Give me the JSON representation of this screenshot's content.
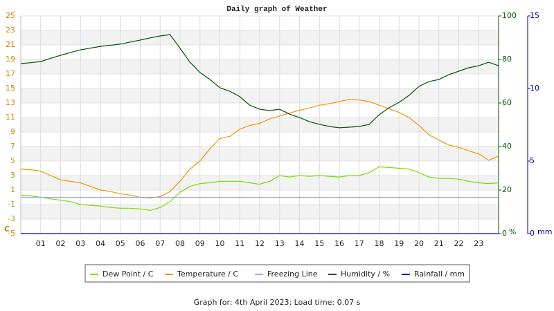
{
  "chart_data": {
    "type": "line",
    "title": "Daily graph of Weather",
    "footer": "Graph for: 4th April 2023; Load time: 0.07 s",
    "x": [
      0,
      0.5,
      1,
      1.5,
      2,
      2.5,
      3,
      3.5,
      4,
      4.5,
      5,
      5.5,
      6,
      6.5,
      7,
      7.5,
      8,
      8.5,
      9,
      9.5,
      10,
      10.5,
      11,
      11.5,
      12,
      12.5,
      13,
      13.5,
      14,
      14.5,
      15,
      15.5,
      16,
      16.5,
      17,
      17.5,
      18,
      18.5,
      19,
      19.5,
      20,
      20.5,
      21,
      21.5,
      22,
      22.5,
      23,
      23.5,
      24
    ],
    "xlim": [
      0,
      24
    ],
    "xticks": [
      {
        "value": 1,
        "label": "01"
      },
      {
        "value": 2,
        "label": "02"
      },
      {
        "value": 3,
        "label": "03"
      },
      {
        "value": 4,
        "label": "04"
      },
      {
        "value": 5,
        "label": "05"
      },
      {
        "value": 6,
        "label": "06"
      },
      {
        "value": 7,
        "label": "07"
      },
      {
        "value": 8,
        "label": "08"
      },
      {
        "value": 9,
        "label": "09"
      },
      {
        "value": 10,
        "label": "10"
      },
      {
        "value": 11,
        "label": "11"
      },
      {
        "value": 12,
        "label": "12"
      },
      {
        "value": 13,
        "label": "13"
      },
      {
        "value": 14,
        "label": "14"
      },
      {
        "value": 15,
        "label": "15"
      },
      {
        "value": 16,
        "label": "16"
      },
      {
        "value": 17,
        "label": "17"
      },
      {
        "value": 18,
        "label": "18"
      },
      {
        "value": 19,
        "label": "19"
      },
      {
        "value": 20,
        "label": "20"
      },
      {
        "value": 21,
        "label": "21"
      },
      {
        "value": 22,
        "label": "22"
      },
      {
        "value": 23,
        "label": "23"
      }
    ],
    "ylim": [
      -5,
      25
    ],
    "yticks": [
      -5,
      -3,
      -1,
      1,
      3,
      5,
      7,
      9,
      11,
      13,
      15,
      17,
      19,
      21,
      23,
      25
    ],
    "y_unit": "C",
    "ycolor": "#cc8800",
    "y2lim": [
      0,
      100
    ],
    "y2ticks": [
      0,
      20,
      40,
      60,
      80,
      100
    ],
    "y2_unit": "%",
    "y2color": "#005500",
    "y3lim": [
      0,
      15
    ],
    "y3ticks": [
      0,
      5,
      10,
      15
    ],
    "y3_unit": "mm",
    "y3color": "#000099",
    "grid": true,
    "series": [
      {
        "name": "Dew Point / C",
        "color": "#77e000",
        "values": [
          0.3,
          0.2,
          0.0,
          -0.2,
          -0.4,
          -0.6,
          -1.0,
          -1.1,
          -1.2,
          -1.4,
          -1.5,
          -1.5,
          -1.6,
          -1.8,
          -1.4,
          -0.6,
          0.7,
          1.5,
          1.9,
          2.0,
          2.2,
          2.2,
          2.2,
          2.0,
          1.8,
          2.2,
          3.0,
          2.8,
          3.0,
          2.9,
          3.0,
          2.9,
          2.8,
          3.0,
          3.0,
          3.4,
          4.2,
          4.1,
          4.0,
          3.9,
          3.4,
          2.8,
          2.6,
          2.6,
          2.5,
          2.2,
          2.0,
          1.9,
          2.0
        ]
      },
      {
        "name": "Temperature / C",
        "color": "#ee9900",
        "values": [
          3.9,
          3.8,
          3.6,
          3.0,
          2.4,
          2.2,
          2.0,
          1.5,
          1.0,
          0.8,
          0.5,
          0.3,
          0.0,
          -0.1,
          0.1,
          0.8,
          2.2,
          3.9,
          5.0,
          6.7,
          8.1,
          8.4,
          9.4,
          9.9,
          10.2,
          10.8,
          11.2,
          11.6,
          12.0,
          12.3,
          12.7,
          12.9,
          13.2,
          13.5,
          13.4,
          13.2,
          12.7,
          12.2,
          11.7,
          11.0,
          9.9,
          8.6,
          7.9,
          7.2,
          6.9,
          6.4,
          6.0,
          5.1,
          5.7
        ]
      },
      {
        "name": "Freezing Line",
        "color": "#99aacc",
        "values": [
          0,
          0,
          0,
          0,
          0,
          0,
          0,
          0,
          0,
          0,
          0,
          0,
          0,
          0,
          0,
          0,
          0,
          0,
          0,
          0,
          0,
          0,
          0,
          0,
          0,
          0,
          0,
          0,
          0,
          0,
          0,
          0,
          0,
          0,
          0,
          0,
          0,
          0,
          0,
          0,
          0,
          0,
          0,
          0,
          0,
          0,
          0,
          0,
          0
        ]
      },
      {
        "name": "Humidity / %",
        "color": "#005500",
        "axis": "y2",
        "values": [
          78.1,
          78.5,
          79.0,
          80.5,
          81.9,
          83.2,
          84.4,
          85.2,
          86.0,
          86.5,
          87.0,
          88.0,
          88.9,
          89.9,
          90.8,
          91.4,
          85.1,
          78.7,
          74.0,
          70.8,
          67.0,
          65.4,
          62.9,
          59.0,
          57.1,
          56.5,
          57.1,
          54.9,
          53.3,
          51.4,
          50.2,
          49.2,
          48.6,
          48.9,
          49.2,
          50.2,
          54.6,
          57.8,
          60.3,
          63.5,
          67.6,
          69.8,
          70.8,
          73.0,
          74.6,
          76.2,
          77.1,
          78.7,
          77.1
        ]
      },
      {
        "name": "Rainfall / mm",
        "color": "#0000cc",
        "axis": "y3",
        "values": [
          0,
          0,
          0,
          0,
          0,
          0,
          0,
          0,
          0,
          0,
          0,
          0,
          0,
          0,
          0,
          0,
          0,
          0,
          0,
          0,
          0,
          0,
          0,
          0,
          0,
          0,
          0,
          0,
          0,
          0,
          0,
          0,
          0,
          0,
          0,
          0,
          0,
          0,
          0,
          0,
          0,
          0,
          0,
          0,
          0,
          0,
          0,
          0,
          0
        ]
      }
    ]
  }
}
